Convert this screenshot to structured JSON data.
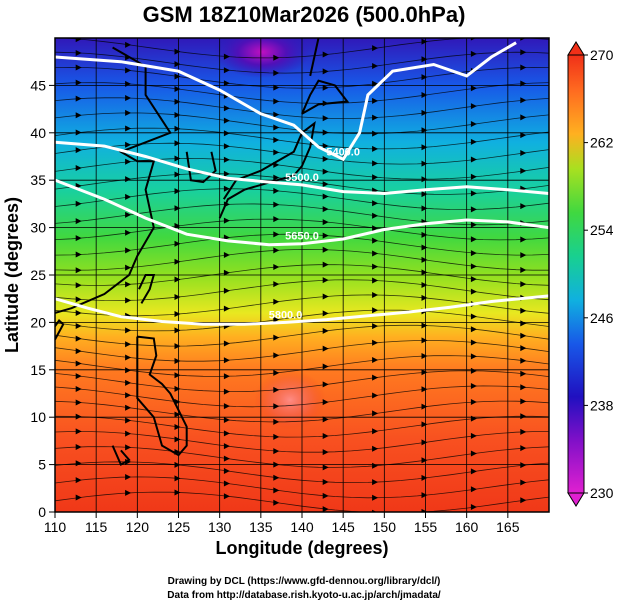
{
  "chart_data": {
    "type": "heatmap",
    "title": "GSM 18Z10Mar2026 (500.0hPa)",
    "xlabel": "Longitude (degrees)",
    "ylabel": "Latitude  (degrees)",
    "xlim": [
      110,
      170
    ],
    "ylim": [
      0,
      50
    ],
    "xticks": [
      110,
      115,
      120,
      125,
      130,
      135,
      140,
      145,
      150,
      155,
      160,
      165
    ],
    "yticks": [
      0,
      5,
      10,
      15,
      20,
      25,
      30,
      35,
      40,
      45
    ],
    "grid": true,
    "colorbar": {
      "min": 230,
      "max": 270,
      "ticks": [
        230,
        238,
        246,
        254,
        262,
        270
      ],
      "colors": [
        "#e020d0",
        "#3010c0",
        "#1858e8",
        "#10c8e0",
        "#20d060",
        "#70e020",
        "#e8f020",
        "#ff9a10",
        "#f03018"
      ]
    },
    "contours": [
      {
        "label": "5400.0",
        "lat_points": [
          [
            110,
            48
          ],
          [
            118,
            47.5
          ],
          [
            125,
            46.5
          ],
          [
            130,
            44.5
          ],
          [
            135,
            42
          ],
          [
            139,
            40.8
          ],
          [
            142,
            38.5
          ],
          [
            145,
            37.2
          ],
          [
            147,
            40
          ],
          [
            148,
            44
          ],
          [
            151,
            46.5
          ],
          [
            156,
            47.2
          ],
          [
            160,
            46
          ],
          [
            163,
            48
          ],
          [
            166,
            49.5
          ]
        ]
      },
      {
        "label": "5500.0",
        "lat_points": [
          [
            110,
            39
          ],
          [
            116,
            38.6
          ],
          [
            121,
            37.5
          ],
          [
            126,
            36.2
          ],
          [
            131,
            35.2
          ],
          [
            136,
            34.8
          ],
          [
            140,
            34.5
          ],
          [
            145,
            33.8
          ],
          [
            150,
            33.6
          ],
          [
            155,
            34
          ],
          [
            160,
            34.3
          ],
          [
            165,
            34
          ],
          [
            170,
            33.6
          ]
        ]
      },
      {
        "label": "5650.0",
        "lat_points": [
          [
            110,
            35
          ],
          [
            116,
            33
          ],
          [
            121,
            31
          ],
          [
            126,
            29.3
          ],
          [
            131,
            28.6
          ],
          [
            136,
            28.2
          ],
          [
            140,
            28.3
          ],
          [
            145,
            28.8
          ],
          [
            150,
            29.8
          ],
          [
            155,
            30.4
          ],
          [
            160,
            30.8
          ],
          [
            165,
            30.6
          ],
          [
            170,
            30
          ]
        ]
      },
      {
        "label": "5800.0",
        "lat_points": [
          [
            110,
            22.5
          ],
          [
            114,
            21.5
          ],
          [
            118,
            20.6
          ],
          [
            123,
            20.1
          ],
          [
            128,
            19.8
          ],
          [
            133,
            19.8
          ],
          [
            138,
            20
          ],
          [
            143,
            20.3
          ],
          [
            148,
            20.7
          ],
          [
            153,
            21.1
          ],
          [
            158,
            21.6
          ],
          [
            163,
            22.2
          ],
          [
            170,
            22.8
          ]
        ]
      }
    ],
    "low_centers": [
      {
        "lon": 131,
        "lat": 48
      }
    ],
    "warm_core": {
      "lon": 137,
      "lat": 12
    }
  },
  "credits": {
    "line1": "Drawing by DCL (https://www.gfd-dennou.org/library/dcl/)",
    "line2": "Data from http://database.rish.kyoto-u.ac.jp/arch/jmadata/"
  }
}
